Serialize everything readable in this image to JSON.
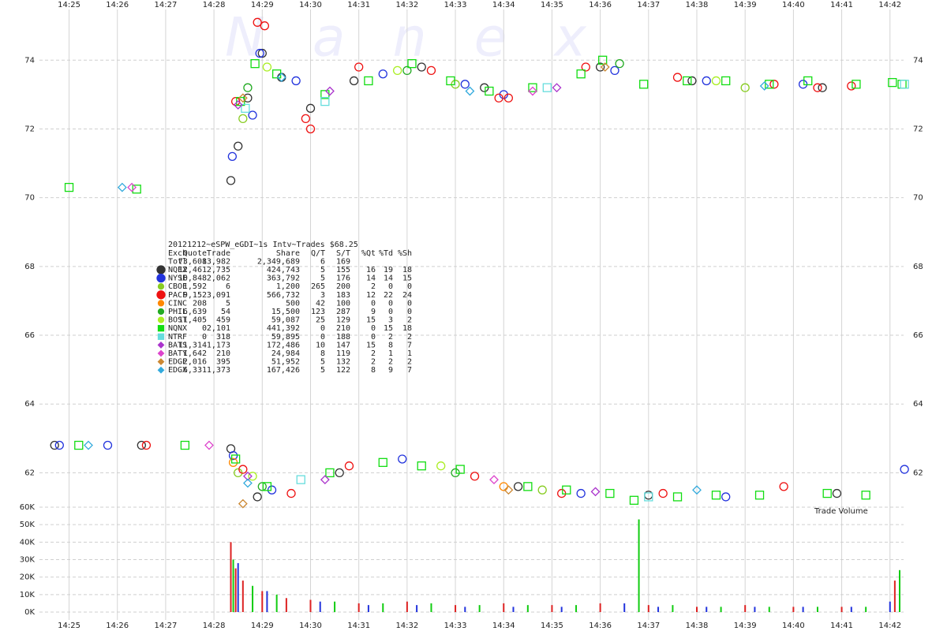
{
  "chart_data": {
    "type": "scatter",
    "watermark": "Nanex",
    "xlim": [
      864.55,
      882.2
    ],
    "xticks": [
      {
        "value": 865,
        "label": "14:25"
      },
      {
        "value": 866,
        "label": "14:26"
      },
      {
        "value": 867,
        "label": "14:27"
      },
      {
        "value": 868,
        "label": "14:28"
      },
      {
        "value": 869,
        "label": "14:29"
      },
      {
        "value": 870,
        "label": "14:30"
      },
      {
        "value": 871,
        "label": "14:31"
      },
      {
        "value": 872,
        "label": "14:32"
      },
      {
        "value": 873,
        "label": "14:33"
      },
      {
        "value": 874,
        "label": "14:34"
      },
      {
        "value": 875,
        "label": "14:35"
      },
      {
        "value": 876,
        "label": "14:36"
      },
      {
        "value": 877,
        "label": "14:37"
      },
      {
        "value": 878,
        "label": "14:38"
      },
      {
        "value": 879,
        "label": "14:39"
      },
      {
        "value": 880,
        "label": "14:40"
      },
      {
        "value": 881,
        "label": "14:41"
      },
      {
        "value": 882,
        "label": "14:42"
      }
    ],
    "ylim": [
      61,
      75.75
    ],
    "yticks": [
      62,
      64,
      66,
      68,
      70,
      72,
      74
    ],
    "grid": true,
    "stats": {
      "title": "20121212~eSPW_eGDI~1s Intv~Trades $68.25",
      "columns": [
        "Exch",
        "Quote",
        "Trade",
        "Share",
        "Q/T",
        "S/T",
        "%Qt",
        "%Td",
        "%Sh"
      ],
      "total": [
        "Totl",
        "73,608",
        "13,982",
        "2,349,689",
        "6",
        "169"
      ]
    },
    "series": [
      {
        "name": "NQEX",
        "color": "#333333",
        "marker": "circle",
        "stats": [
          "12,461",
          "2,735",
          "424,743",
          "5",
          "155",
          "16",
          "19",
          "18"
        ],
        "x": [
          868.35,
          868.5,
          868.7,
          869.0,
          869.4,
          870.0,
          870.9,
          872.3,
          873.6,
          876.0,
          877.9,
          880.6,
          864.7,
          866.5,
          868.35,
          868.9,
          870.6,
          874.3,
          877.0,
          880.9
        ],
        "values": [
          70.5,
          71.5,
          72.9,
          74.2,
          73.5,
          72.6,
          73.4,
          73.8,
          73.2,
          73.8,
          73.4,
          73.2,
          62.8,
          62.8,
          62.7,
          61.3,
          62.0,
          61.6,
          61.35,
          61.4
        ]
      },
      {
        "name": "NYSE",
        "color": "#2233dd",
        "marker": "circle",
        "stats": [
          "10,848",
          "2,062",
          "363,792",
          "5",
          "176",
          "14",
          "14",
          "15"
        ],
        "x": [
          868.38,
          868.8,
          868.95,
          869.7,
          871.5,
          873.2,
          874.0,
          876.3,
          878.2,
          880.2,
          864.8,
          865.8,
          868.4,
          869.2,
          871.9,
          875.6,
          878.6,
          882.3
        ],
        "values": [
          71.2,
          72.4,
          74.2,
          73.4,
          73.6,
          73.3,
          73.0,
          73.7,
          73.4,
          73.3,
          62.8,
          62.8,
          62.5,
          61.5,
          62.4,
          61.4,
          61.3,
          62.1
        ]
      },
      {
        "name": "CBOE",
        "color": "#88cc22",
        "marker": "circle",
        "stats": [
          "1,592",
          "6",
          "1,200",
          "265",
          "200",
          "2",
          "0",
          "0"
        ],
        "x": [
          868.6,
          873.0,
          879.0,
          868.5,
          874.8
        ],
        "values": [
          72.3,
          73.3,
          73.2,
          62.0,
          61.5
        ]
      },
      {
        "name": "PACF",
        "color": "#ee1111",
        "marker": "circle",
        "stats": [
          "9,152",
          "3,091",
          "566,732",
          "3",
          "183",
          "12",
          "22",
          "24"
        ],
        "x": [
          868.45,
          868.9,
          869.05,
          869.9,
          870.0,
          871.0,
          872.5,
          873.9,
          874.1,
          875.7,
          877.6,
          879.6,
          880.5,
          881.2,
          866.6,
          868.6,
          869.6,
          870.8,
          873.4,
          875.2,
          877.3,
          879.8
        ],
        "values": [
          72.8,
          75.1,
          75.0,
          72.3,
          72.0,
          73.8,
          73.7,
          72.9,
          72.9,
          73.8,
          73.5,
          73.3,
          73.2,
          73.25,
          62.8,
          62.1,
          61.4,
          62.2,
          61.9,
          61.4,
          61.4,
          61.6
        ]
      },
      {
        "name": "CINC",
        "color": "#ff8800",
        "marker": "circle",
        "stats": [
          "208",
          "5",
          "500",
          "42",
          "100",
          "0",
          "0",
          "0"
        ],
        "x": [
          868.4,
          874.0
        ],
        "values": [
          62.3,
          61.6
        ]
      },
      {
        "name": "PHIL",
        "color": "#22aa22",
        "marker": "circle",
        "stats": [
          "6,639",
          "54",
          "15,500",
          "123",
          "287",
          "9",
          "0",
          "0"
        ],
        "x": [
          868.7,
          872.0,
          876.4,
          869.0,
          873.0
        ],
        "values": [
          73.2,
          73.7,
          73.9,
          61.6,
          62.0
        ]
      },
      {
        "name": "BOST",
        "color": "#aaee22",
        "marker": "circle",
        "stats": [
          "11,405",
          "459",
          "59,087",
          "25",
          "129",
          "15",
          "3",
          "2"
        ],
        "x": [
          869.1,
          871.8,
          878.4,
          868.8,
          872.7
        ],
        "values": [
          73.8,
          73.7,
          73.4,
          61.9,
          62.2
        ]
      },
      {
        "name": "NQNX",
        "color": "#11dd11",
        "marker": "square",
        "stats": [
          "0",
          "2,101",
          "441,392",
          "0",
          "210",
          "0",
          "15",
          "18"
        ],
        "x": [
          865.0,
          866.4,
          868.55,
          868.85,
          869.3,
          870.3,
          871.2,
          872.1,
          872.9,
          873.7,
          874.6,
          875.6,
          876.05,
          876.9,
          877.8,
          878.6,
          879.5,
          880.3,
          881.3,
          882.05,
          882.25,
          865.2,
          867.4,
          868.45,
          869.1,
          870.4,
          871.5,
          872.3,
          873.1,
          874.5,
          875.3,
          876.2,
          876.7,
          877.6,
          878.4,
          879.3,
          880.7,
          881.5
        ],
        "values": [
          70.3,
          70.25,
          72.8,
          73.9,
          73.6,
          73.0,
          73.4,
          73.9,
          73.4,
          73.1,
          73.2,
          73.6,
          74.0,
          73.3,
          73.4,
          73.4,
          73.3,
          73.4,
          73.3,
          73.35,
          73.3,
          62.8,
          62.8,
          62.4,
          61.6,
          62.0,
          62.3,
          62.2,
          62.1,
          61.6,
          61.5,
          61.4,
          61.2,
          61.3,
          61.35,
          61.35,
          61.4,
          61.35
        ]
      },
      {
        "name": "NTRF",
        "color": "#66dddd",
        "marker": "square",
        "stats": [
          "0",
          "318",
          "59,895",
          "0",
          "188",
          "0",
          "2",
          "2"
        ],
        "x": [
          868.65,
          870.3,
          874.9,
          882.3,
          869.8,
          877.0
        ],
        "values": [
          72.6,
          72.8,
          73.2,
          73.3,
          61.8,
          61.3
        ]
      },
      {
        "name": "BATS",
        "color": "#aa33cc",
        "marker": "diamond",
        "stats": [
          "11,314",
          "1,173",
          "172,486",
          "10",
          "147",
          "15",
          "8",
          "7"
        ],
        "x": [
          868.5,
          870.4,
          875.1,
          868.7,
          870.3,
          875.9
        ],
        "values": [
          72.7,
          73.1,
          73.2,
          61.9,
          61.8,
          61.45
        ]
      },
      {
        "name": "BATY",
        "color": "#dd44cc",
        "marker": "diamond",
        "stats": [
          "1,642",
          "210",
          "24,984",
          "8",
          "119",
          "2",
          "1",
          "1"
        ],
        "x": [
          866.3,
          874.6,
          867.9,
          873.8
        ],
        "values": [
          70.3,
          73.1,
          62.8,
          61.8
        ]
      },
      {
        "name": "EDGE",
        "color": "#cc8833",
        "marker": "diamond",
        "stats": [
          "2,016",
          "395",
          "51,952",
          "5",
          "132",
          "2",
          "2",
          "2"
        ],
        "x": [
          868.6,
          876.1,
          868.6,
          874.1
        ],
        "values": [
          72.9,
          73.8,
          61.1,
          61.5
        ]
      },
      {
        "name": "EDGX",
        "color": "#33aadd",
        "marker": "diamond",
        "stats": [
          "6,331",
          "1,373",
          "167,426",
          "5",
          "122",
          "8",
          "9",
          "7"
        ],
        "x": [
          866.1,
          869.4,
          873.3,
          879.4,
          865.4,
          868.7,
          878.0
        ],
        "values": [
          70.3,
          73.5,
          73.1,
          73.25,
          62.8,
          61.7,
          61.5
        ]
      }
    ],
    "volume": {
      "label": "Trade Volume",
      "ylim": [
        0,
        60000
      ],
      "yticks": [
        {
          "value": 0,
          "label": "0K"
        },
        {
          "value": 10000,
          "label": "10K"
        },
        {
          "value": 20000,
          "label": "20K"
        },
        {
          "value": 30000,
          "label": "30K"
        },
        {
          "value": 40000,
          "label": "40K"
        },
        {
          "value": 50000,
          "label": "50K"
        },
        {
          "value": 60000,
          "label": "60K"
        }
      ],
      "series": [
        {
          "color": "#dd2222",
          "x": [
            868.35,
            868.45,
            868.6,
            869.0,
            869.5,
            870.0,
            871.0,
            872.0,
            873.0,
            874.0,
            875.0,
            876.0,
            877.0,
            878.0,
            879.0,
            880.0,
            881.0,
            882.1
          ],
          "values": [
            40000,
            25000,
            18000,
            12000,
            8000,
            7000,
            5000,
            6000,
            4000,
            5000,
            4000,
            5000,
            4000,
            3000,
            4000,
            3000,
            3000,
            18000
          ]
        },
        {
          "color": "#11cc11",
          "x": [
            868.4,
            868.8,
            869.3,
            870.5,
            871.5,
            872.5,
            873.5,
            874.5,
            875.5,
            876.8,
            877.5,
            878.5,
            879.5,
            880.5,
            881.5,
            882.2
          ],
          "values": [
            30000,
            15000,
            10000,
            6000,
            5000,
            5000,
            4000,
            4000,
            4000,
            53000,
            4000,
            3000,
            3000,
            3000,
            3000,
            24000
          ]
        },
        {
          "color": "#2233dd",
          "x": [
            868.5,
            869.1,
            870.2,
            871.2,
            872.2,
            873.2,
            874.2,
            875.2,
            876.5,
            877.2,
            878.2,
            879.2,
            880.2,
            881.2,
            882.0
          ],
          "values": [
            28000,
            12000,
            6000,
            4000,
            4000,
            3000,
            3000,
            3000,
            5000,
            3000,
            3000,
            3000,
            3000,
            3000,
            6000
          ]
        }
      ]
    }
  }
}
